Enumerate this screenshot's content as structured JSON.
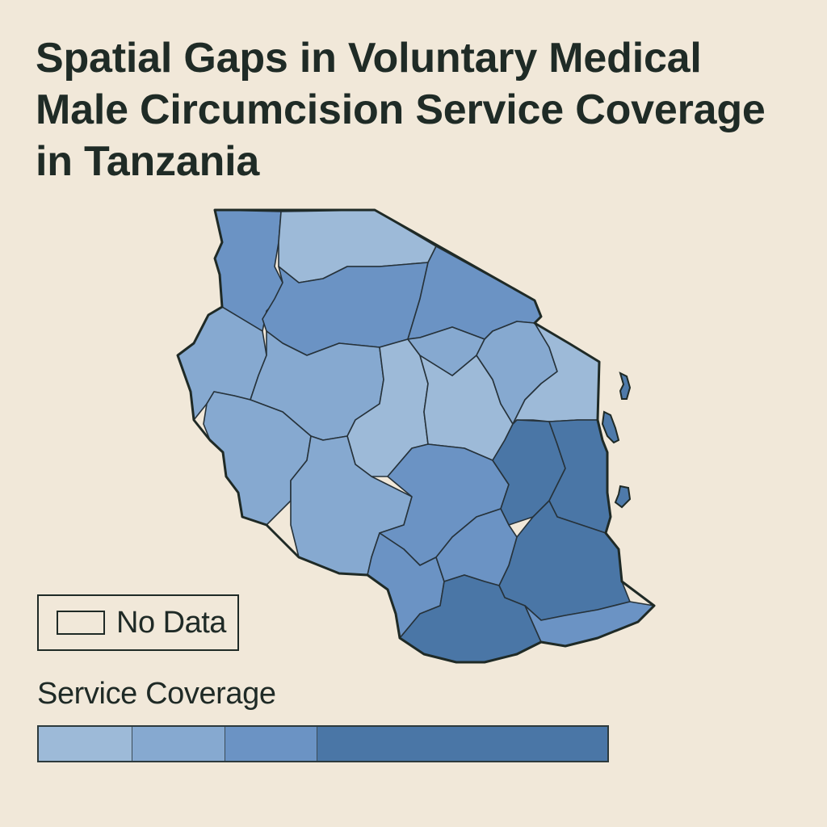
{
  "title": "Spatial Gaps in Voluntary Medical Male Circumcision Service Coverage in Tanzania",
  "legend": {
    "no_data_label": "No Data",
    "title": "Service Coverage",
    "bins": [
      {
        "color": "#9dbad8"
      },
      {
        "color": "#86a9d0"
      },
      {
        "color": "#6b93c4"
      },
      {
        "color": "#4a76a6"
      }
    ]
  },
  "colors": {
    "background": "#f1e8d9",
    "border": "#1f2a26",
    "class_1": "#9dbad8",
    "class_2": "#86a9d0",
    "class_3": "#6b93c4",
    "class_4": "#4a76a6"
  },
  "map": {
    "country": "Tanzania",
    "regions": [
      {
        "id": "northwest",
        "class": 3
      },
      {
        "id": "north-lake",
        "class": 1
      },
      {
        "id": "lake-south",
        "class": 3
      },
      {
        "id": "northeast",
        "class": 3
      },
      {
        "id": "west",
        "class": 2
      },
      {
        "id": "west-central",
        "class": 2
      },
      {
        "id": "central-west",
        "class": 2
      },
      {
        "id": "central",
        "class": 1
      },
      {
        "id": "central-east",
        "class": 1
      },
      {
        "id": "north-central",
        "class": 2
      },
      {
        "id": "northeast-inner",
        "class": 2
      },
      {
        "id": "northeast-coast",
        "class": 1
      },
      {
        "id": "southwest",
        "class": 2
      },
      {
        "id": "south-central-west",
        "class": 3
      },
      {
        "id": "south-central",
        "class": 3
      },
      {
        "id": "east-central",
        "class": 4
      },
      {
        "id": "coast",
        "class": 4
      },
      {
        "id": "southeast",
        "class": 4
      },
      {
        "id": "south",
        "class": 3
      },
      {
        "id": "south-coast",
        "class": 3
      },
      {
        "id": "south-inner",
        "class": 4
      },
      {
        "id": "islands",
        "class": 3
      }
    ]
  }
}
